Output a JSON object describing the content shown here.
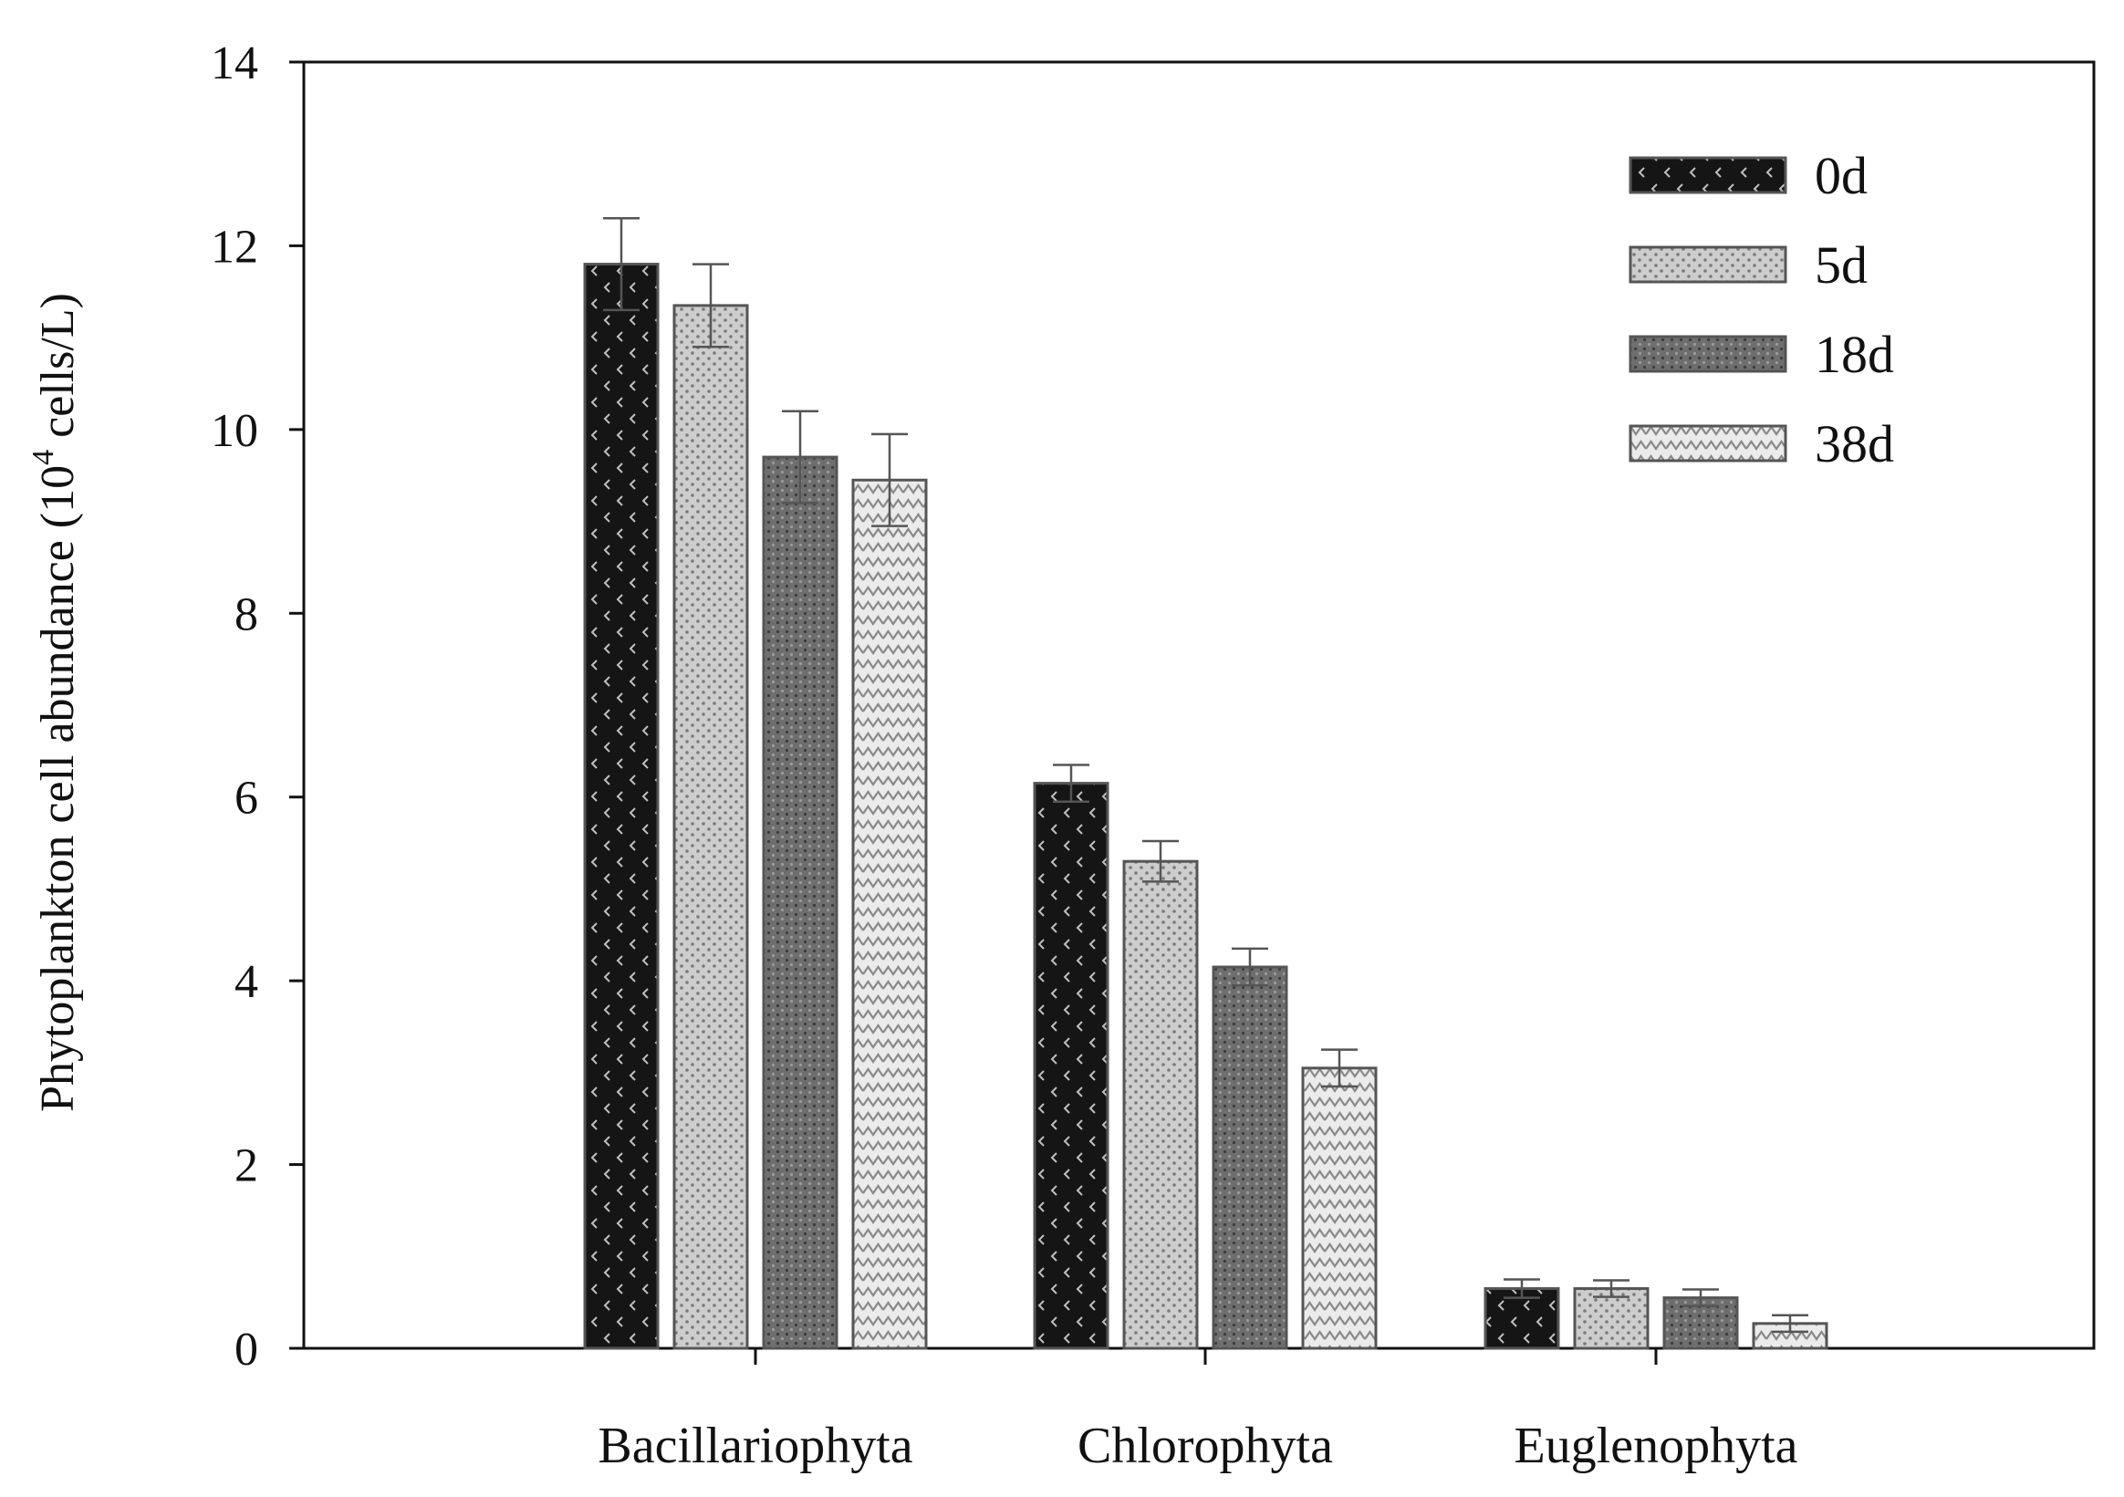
{
  "chart_data": {
    "type": "bar",
    "title": "",
    "xlabel": "",
    "ylabel": {
      "prefix": "Phytoplankton cell abundance (10",
      "superscript": "4",
      "suffix": " cells/L)"
    },
    "ylim": [
      0,
      14
    ],
    "yticks": [
      "0",
      "2",
      "4",
      "6",
      "8",
      "10",
      "12",
      "14"
    ],
    "categories": [
      "Bacillariophyta",
      "Chlorophyta",
      "Euglenophyta"
    ],
    "series": [
      {
        "name": "0d",
        "values": [
          11.8,
          6.15,
          0.65
        ],
        "errors": [
          0.5,
          0.2,
          0.1
        ],
        "color": "#141414",
        "pattern": "dark-chevron"
      },
      {
        "name": "5d",
        "values": [
          11.35,
          5.3,
          0.65
        ],
        "errors": [
          0.45,
          0.22,
          0.09
        ],
        "color": "#c8c8c8",
        "pattern": "light-dots"
      },
      {
        "name": "18d",
        "values": [
          9.7,
          4.15,
          0.55
        ],
        "errors": [
          0.5,
          0.2,
          0.09
        ],
        "color": "#707070",
        "pattern": "dark-dots"
      },
      {
        "name": "38d",
        "values": [
          9.45,
          3.05,
          0.27
        ],
        "errors": [
          0.5,
          0.2,
          0.09
        ],
        "color": "#e6e6e6",
        "pattern": "zigzag"
      }
    ],
    "legend_position": "top-right",
    "grid": false
  }
}
